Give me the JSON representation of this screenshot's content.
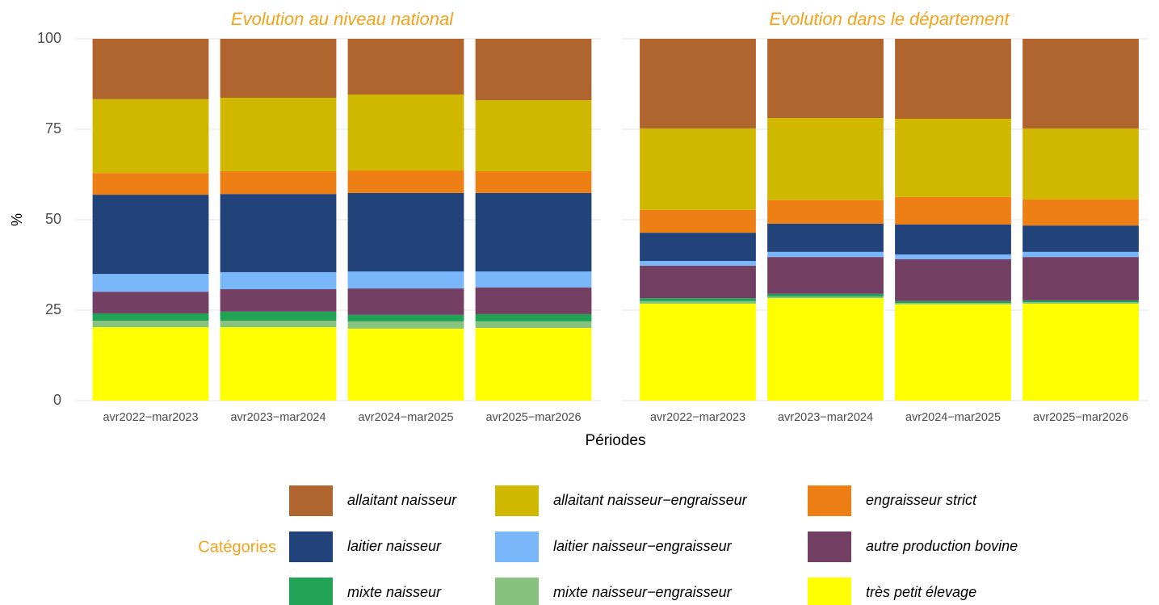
{
  "chart_data": [
    {
      "type": "bar",
      "stacked": true,
      "title": "Evolution au niveau national",
      "ylabel": "%",
      "xlabel": "Périodes",
      "legend_title": "Catégories",
      "categories": [
        "avr2022−mar2023",
        "avr2023−mar2024",
        "avr2024−mar2025",
        "avr2025−mar2026"
      ],
      "ylim": [
        0,
        100
      ],
      "yticks": [
        0,
        25,
        50,
        75,
        100
      ],
      "grid": true,
      "series": [
        {
          "name": "allaitant naisseur",
          "color": "#b0642e",
          "values": [
            16.7,
            16.3,
            15.4,
            17.0
          ]
        },
        {
          "name": "allaitant naisseur−engraisseur",
          "color": "#d1b800",
          "values": [
            20.4,
            20.3,
            21.0,
            19.6
          ]
        },
        {
          "name": "engraisseur strict",
          "color": "#ee7f14",
          "values": [
            6.0,
            6.3,
            6.2,
            6.0
          ]
        },
        {
          "name": "laitier naisseur",
          "color": "#22437a",
          "values": [
            21.9,
            21.6,
            21.7,
            21.7
          ]
        },
        {
          "name": "laitier naisseur−engraisseur",
          "color": "#7ab6fa",
          "values": [
            4.9,
            4.7,
            4.7,
            4.4
          ]
        },
        {
          "name": "autre production bovine",
          "color": "#733f62",
          "values": [
            6.0,
            6.2,
            7.3,
            7.4
          ]
        },
        {
          "name": "mixte naisseur",
          "color": "#21a355",
          "values": [
            2.0,
            2.5,
            1.8,
            2.0
          ]
        },
        {
          "name": "mixte naisseur−engraisseur",
          "color": "#87c37f",
          "values": [
            1.8,
            1.8,
            2.0,
            1.8
          ]
        },
        {
          "name": "très petit élevage",
          "color": "#ffff00",
          "values": [
            20.3,
            20.3,
            19.9,
            20.1
          ]
        }
      ]
    },
    {
      "type": "bar",
      "stacked": true,
      "title": "Evolution dans le département",
      "categories": [
        "avr2022−mar2023",
        "avr2023−mar2024",
        "avr2024−mar2025",
        "avr2025−mar2026"
      ],
      "ylim": [
        0,
        100
      ],
      "yticks": [
        0,
        25,
        50,
        75,
        100
      ],
      "grid": true,
      "series": [
        {
          "name": "allaitant naisseur",
          "color": "#b0642e",
          "values": [
            24.8,
            21.9,
            22.1,
            24.8
          ]
        },
        {
          "name": "allaitant naisseur−engraisseur",
          "color": "#d1b800",
          "values": [
            22.5,
            22.7,
            21.6,
            19.6
          ]
        },
        {
          "name": "engraisseur strict",
          "color": "#ee7f14",
          "values": [
            6.3,
            6.5,
            7.6,
            7.2
          ]
        },
        {
          "name": "laitier naisseur",
          "color": "#22437a",
          "values": [
            7.8,
            7.8,
            8.3,
            7.3
          ]
        },
        {
          "name": "laitier naisseur−engraisseur",
          "color": "#7ab6fa",
          "values": [
            1.3,
            1.4,
            1.3,
            1.4
          ]
        },
        {
          "name": "autre production bovine",
          "color": "#733f62",
          "values": [
            9.0,
            10.2,
            11.6,
            12.0
          ]
        },
        {
          "name": "mixte naisseur",
          "color": "#21a355",
          "values": [
            0.8,
            0.7,
            0.5,
            0.5
          ]
        },
        {
          "name": "mixte naisseur−engraisseur",
          "color": "#87c37f",
          "values": [
            0.7,
            0.5,
            0.4,
            0.4
          ]
        },
        {
          "name": "très petit élevage",
          "color": "#ffff00",
          "values": [
            26.8,
            28.3,
            26.6,
            26.8
          ]
        }
      ]
    }
  ]
}
